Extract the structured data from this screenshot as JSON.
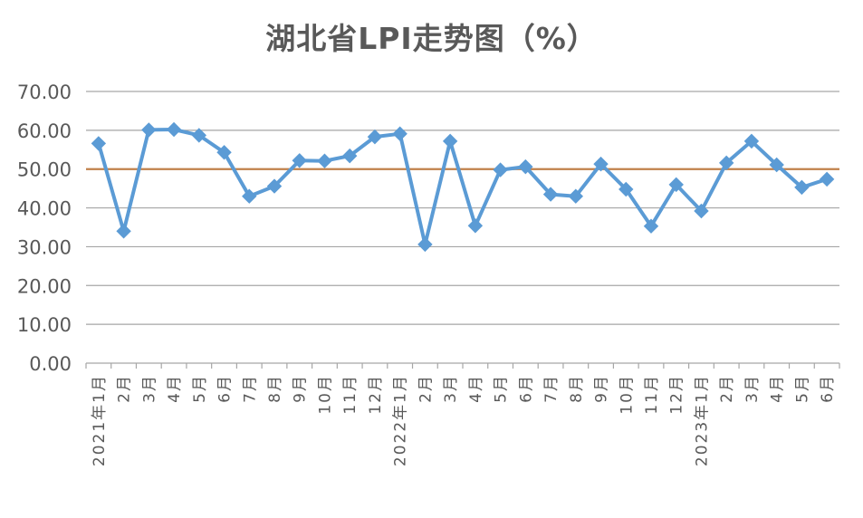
{
  "chart_data": {
    "type": "line",
    "title": "湖北省LPI走势图（%）",
    "xlabel": "",
    "ylabel": "",
    "ylim": [
      0,
      70
    ],
    "yticks": [
      "0.00",
      "10.00",
      "20.00",
      "30.00",
      "40.00",
      "50.00",
      "60.00",
      "70.00"
    ],
    "categories": [
      "2021年1月",
      "2月",
      "3月",
      "4月",
      "5月",
      "6月",
      "7月",
      "8月",
      "9月",
      "10月",
      "11月",
      "12月",
      "2022年1月",
      "2月",
      "3月",
      "4月",
      "5月",
      "6月",
      "7月",
      "8月",
      "9月",
      "10月",
      "11月",
      "12月",
      "2023年1月",
      "2月",
      "3月",
      "4月",
      "5月",
      "6月"
    ],
    "series": [
      {
        "values": [
          56.6,
          34.0,
          60.1,
          60.2,
          58.7,
          54.3,
          43.0,
          45.6,
          52.2,
          52.1,
          53.4,
          58.3,
          59.1,
          30.6,
          57.2,
          35.4,
          49.8,
          50.6,
          43.5,
          43.0,
          51.3,
          44.8,
          35.3,
          46.0,
          39.2,
          51.6,
          57.2,
          51.1,
          45.3,
          47.4
        ],
        "color": "#5b9bd5"
      }
    ],
    "reference_line": {
      "value": 50,
      "color": "#c0804a"
    },
    "grid": true,
    "legend": "none"
  }
}
